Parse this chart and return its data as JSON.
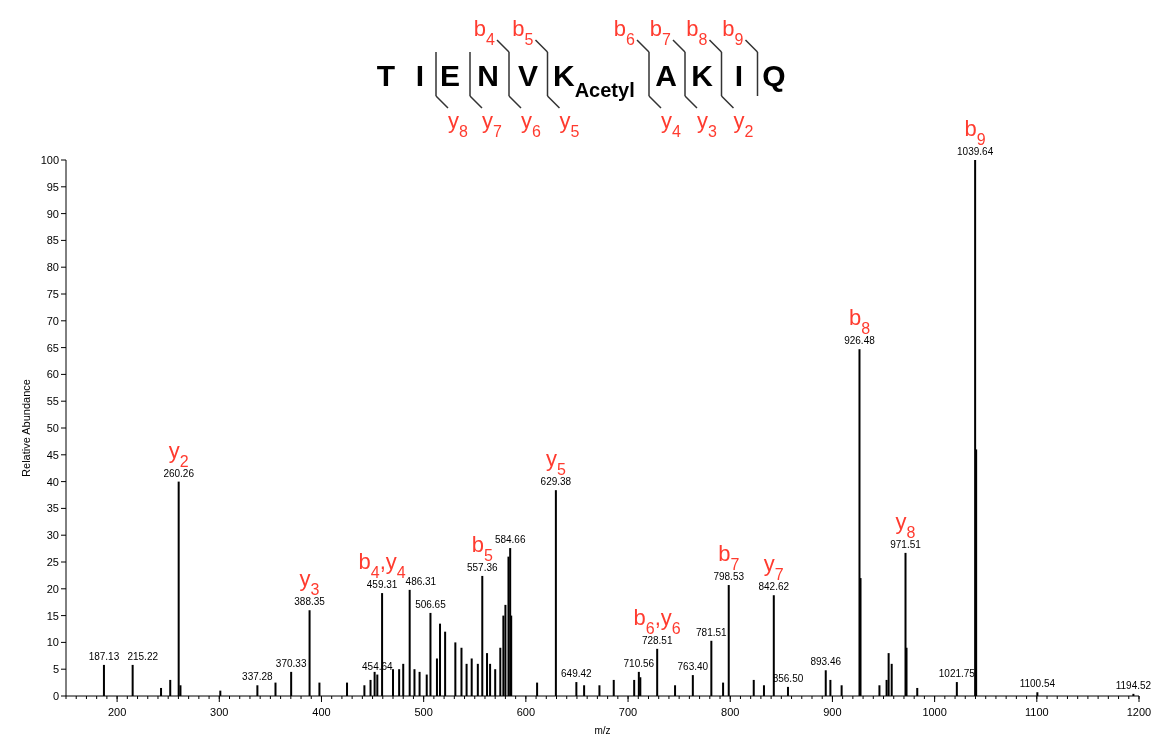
{
  "chart_data": {
    "type": "bar",
    "xlabel": "m/z",
    "ylabel": "Relative Abundance",
    "x": [
      187.13,
      215.22,
      243,
      252,
      260.26,
      262,
      301,
      337.28,
      355,
      370.33,
      388.35,
      398,
      425,
      442,
      448,
      452,
      454.64,
      459.31,
      470,
      476,
      480,
      486.31,
      491,
      496,
      503,
      506.65,
      513,
      516,
      521,
      531,
      537,
      542,
      547,
      553,
      557.36,
      562,
      565,
      570,
      575,
      578,
      580,
      583,
      584.66,
      585.66,
      611,
      629.38,
      649.42,
      657,
      672,
      686,
      706,
      710.56,
      712,
      728.51,
      746,
      763.4,
      781.51,
      793,
      798.53,
      823,
      833,
      842.62,
      856.5,
      893.46,
      898,
      909,
      926.48,
      927.48,
      946,
      953,
      955,
      958,
      971.51,
      972.5,
      983,
      1021.75,
      1039.64,
      1040.64,
      1100.54,
      1194.52
    ],
    "values": [
      5.8,
      5.8,
      1.5,
      3,
      40,
      2,
      1,
      2,
      2.5,
      4.5,
      16,
      2.5,
      2.5,
      2,
      3,
      4.5,
      4,
      19.2,
      5,
      5,
      6,
      19.8,
      5,
      4.5,
      4,
      15.5,
      7,
      13.5,
      12,
      10,
      9,
      6,
      7,
      6,
      22.4,
      8,
      6,
      5,
      9,
      15,
      17,
      26,
      27.6,
      15,
      2.5,
      38.4,
      2.6,
      2,
      2,
      3,
      3,
      4.5,
      3.5,
      8.8,
      2,
      3.9,
      10.3,
      2.5,
      20.7,
      3,
      2,
      18.8,
      1.7,
      4.8,
      3,
      2,
      64.7,
      22,
      2,
      3,
      8,
      6,
      26.7,
      9,
      1.5,
      2.6,
      100,
      46,
      0.7,
      0.4
    ],
    "color": "#000000",
    "xlim": [
      150,
      1200
    ],
    "xticks": [
      200,
      300,
      400,
      500,
      600,
      700,
      800,
      900,
      1000,
      1100,
      1200
    ],
    "ylim": [
      0,
      100
    ],
    "yticks": [
      0,
      5,
      10,
      15,
      20,
      25,
      30,
      35,
      40,
      45,
      50,
      55,
      60,
      65,
      70,
      75,
      80,
      85,
      90,
      95,
      100
    ],
    "annotations": [
      "T",
      "I",
      "E",
      "N",
      "V",
      "K$_{Acetyl}$",
      "A",
      "K",
      "I",
      "Q",
      "b$_{4}$",
      "b$_{5}$",
      "b$_{6}$",
      "b$_{7}$",
      "b$_{8}$",
      "b$_{9}$",
      "y$_{8}$",
      "y$_{7}$",
      "y$_{6}$",
      "y$_{5}$",
      "y$_{4}$",
      "y$_{3}$",
      "y$_{2}$",
      {
        "text": "187.13",
        "x": 187.13,
        "y": 5.8
      },
      {
        "text": "215.22",
        "x": 215.22,
        "y": 5.8
      },
      {
        "text": "260.26",
        "x": 260.26,
        "y": 40
      },
      {
        "text": "337.28",
        "x": 337.28,
        "y": 2
      },
      {
        "text": "370.33",
        "x": 370.33,
        "y": 4.5
      },
      {
        "text": "388.35",
        "x": 388.35,
        "y": 16
      },
      {
        "text": "454.64",
        "x": 454.64,
        "y": 4
      },
      {
        "text": "459.31",
        "x": 459.31,
        "y": 19.2
      },
      {
        "text": "486.31",
        "x": 486.31,
        "y": 19.8
      },
      {
        "text": "506.65",
        "x": 506.65,
        "y": 15.5
      },
      {
        "text": "557.36",
        "x": 557.36,
        "y": 22.4
      },
      {
        "text": "584.66",
        "x": 584.66,
        "y": 27.6
      },
      {
        "text": "629.38",
        "x": 629.38,
        "y": 38.4
      },
      {
        "text": "649.42",
        "x": 649.42,
        "y": 2.6
      },
      {
        "text": "710.56",
        "x": 710.56,
        "y": 4.5
      },
      {
        "text": "728.51",
        "x": 728.51,
        "y": 8.8
      },
      {
        "text": "763.40",
        "x": 763.4,
        "y": 3.9
      },
      {
        "text": "781.51",
        "x": 781.51,
        "y": 10.3
      },
      {
        "text": "798.53",
        "x": 798.53,
        "y": 20.7
      },
      {
        "text": "842.62",
        "x": 842.62,
        "y": 18.8
      },
      {
        "text": "856.50",
        "x": 856.5,
        "y": 1.7
      },
      {
        "text": "893.46",
        "x": 893.46,
        "y": 4.8
      },
      {
        "text": "926.48",
        "x": 926.48,
        "y": 64.7
      },
      {
        "text": "971.51",
        "x": 971.51,
        "y": 26.7
      },
      {
        "text": "1021.75",
        "x": 1021.75,
        "y": 2.6
      },
      {
        "text": "1039.64",
        "x": 1039.64,
        "y": 100
      },
      {
        "text": "1100.54",
        "x": 1100.54,
        "y": 0.7
      },
      {
        "text": "1194.52",
        "x": 1194.52,
        "y": 0.4
      },
      {
        "text": "y$_{2}$",
        "x": 260.26,
        "y": 40
      },
      {
        "text": "y$_{3}$",
        "x": 388.35,
        "y": 16
      },
      {
        "text": "b$_{4}$,y$_{4}$",
        "x": 459.31,
        "y": 19.2
      },
      {
        "text": "b$_{5}$",
        "x": 557.36,
        "y": 22.4
      },
      {
        "text": "y$_{5}$",
        "x": 629.38,
        "y": 38.4
      },
      {
        "text": "b$_{6}$,y$_{6}$",
        "x": 728.51,
        "y": 8.8
      },
      {
        "text": "b$_{7}$",
        "x": 798.53,
        "y": 20.7
      },
      {
        "text": "y$_{7}$",
        "x": 842.62,
        "y": 18.8
      },
      {
        "text": "b$_{8}$",
        "x": 926.48,
        "y": 64.7
      },
      {
        "text": "y$_{8}$",
        "x": 971.51,
        "y": 26.7
      },
      {
        "text": "b$_{9}$",
        "x": 1039.64,
        "y": 100
      }
    ]
  }
}
